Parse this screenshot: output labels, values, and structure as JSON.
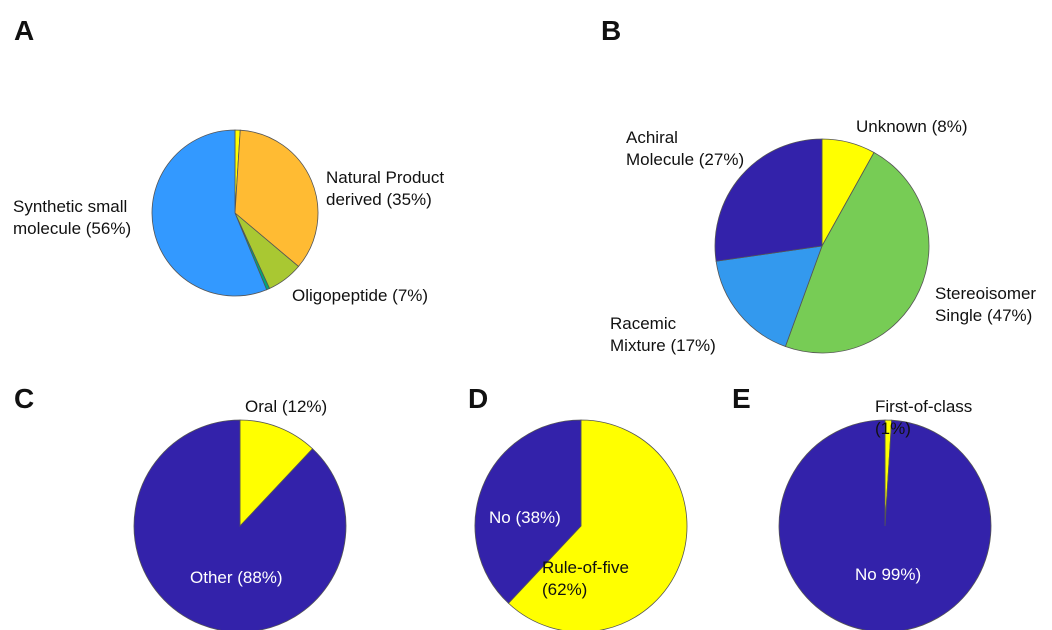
{
  "chart_data": [
    {
      "type": "pie",
      "panel": "A",
      "slices": [
        {
          "label_lines": [
            "",
            ""
          ],
          "value": 1,
          "color": "#ffff00"
        },
        {
          "label_lines": [
            "Natural Product",
            "derived (35%)"
          ],
          "value": 35,
          "color": "#ffbb33"
        },
        {
          "label_lines": [
            "Oligopeptide (7%)"
          ],
          "value": 7,
          "color": "#a9c832"
        },
        {
          "label_lines": [
            ""
          ],
          "value": 0.6,
          "color": "#00a878"
        },
        {
          "label_lines": [
            "Synthetic small",
            "molecule (56%)"
          ],
          "value": 56,
          "color": "#3399ff"
        }
      ]
    },
    {
      "type": "pie",
      "panel": "B",
      "slices": [
        {
          "label_lines": [
            "Unknown (8%)"
          ],
          "value": 8,
          "color": "#ffff00"
        },
        {
          "label_lines": [
            "Stereoisomer",
            "Single (47%)"
          ],
          "value": 47,
          "color": "#77cc55"
        },
        {
          "label_lines": [
            "Racemic",
            "Mixture (17%)"
          ],
          "value": 17,
          "color": "#3399ee"
        },
        {
          "label_lines": [
            "Achiral",
            "Molecule (27%)"
          ],
          "value": 27,
          "color": "#3322aa"
        }
      ]
    },
    {
      "type": "pie",
      "panel": "C",
      "slices": [
        {
          "label_lines": [
            "Oral (12%)"
          ],
          "value": 12,
          "color": "#ffff00"
        },
        {
          "label_lines": [
            "Other (88%)"
          ],
          "value": 88,
          "color": "#3322aa"
        }
      ]
    },
    {
      "type": "pie",
      "panel": "D",
      "slices": [
        {
          "label_lines": [
            "Rule-of-five",
            "(62%)"
          ],
          "value": 62,
          "color": "#ffff00"
        },
        {
          "label_lines": [
            "No (38%)"
          ],
          "value": 38,
          "color": "#3322aa"
        }
      ]
    },
    {
      "type": "pie",
      "panel": "E",
      "slices": [
        {
          "label_lines": [
            "First-of-class",
            "(1%)"
          ],
          "value": 1,
          "color": "#ffff00"
        },
        {
          "label_lines": [
            "No 99%)"
          ],
          "value": 99,
          "color": "#3322aa"
        }
      ]
    }
  ]
}
